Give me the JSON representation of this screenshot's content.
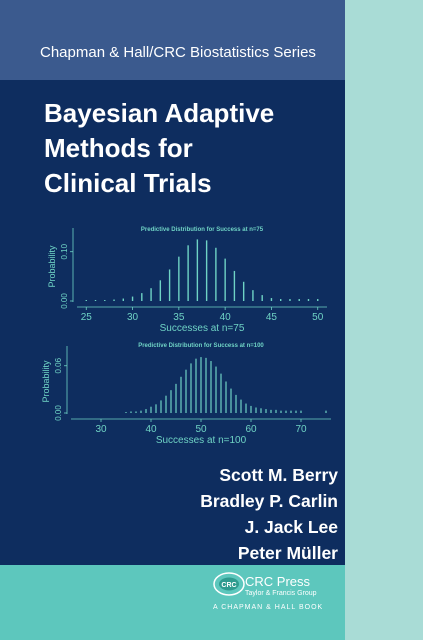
{
  "series": "Chapman & Hall/CRC Biostatistics Series",
  "title_lines": [
    "Bayesian Adaptive",
    "Methods for",
    "Clinical Trials"
  ],
  "authors": [
    "Scott M. Berry",
    "Bradley P. Carlin",
    "J. Jack Lee",
    "Peter Müller"
  ],
  "publisher": {
    "name": "CRC Press",
    "group": "Taylor & Francis Group",
    "imprint": "A CHAPMAN & HALL BOOK",
    "logo_text": "CRC"
  },
  "colors": {
    "navy": "#0e2d5f",
    "series_band": "#3b5a8e",
    "teal": "#5dc7bd",
    "spine": "#a9dcd6",
    "chart_color": "#6fd3c5"
  },
  "chart_data": [
    {
      "type": "bar",
      "title": "Predictive Distribution for Success at n=75",
      "xlabel": "Successes at n=75",
      "ylabel": "Probability",
      "xlim": [
        24,
        51
      ],
      "ylim": [
        0,
        0.14
      ],
      "x_ticks": [
        25,
        30,
        35,
        40,
        45,
        50
      ],
      "y_ticks": [
        0.0,
        0.1
      ],
      "y_tick_labels": [
        "0.00",
        "0.10"
      ],
      "x": [
        25,
        26,
        27,
        28,
        29,
        30,
        31,
        32,
        33,
        34,
        35,
        36,
        37,
        38,
        39,
        40,
        41,
        42,
        43,
        44,
        45,
        46,
        47,
        48,
        49,
        50
      ],
      "values": [
        0.001,
        0.001,
        0.002,
        0.003,
        0.005,
        0.009,
        0.016,
        0.026,
        0.042,
        0.064,
        0.09,
        0.113,
        0.125,
        0.123,
        0.108,
        0.086,
        0.061,
        0.039,
        0.022,
        0.012,
        0.006,
        0.004,
        0.004,
        0.004,
        0.004,
        0.004
      ]
    },
    {
      "type": "bar",
      "title": "Predictive Distribution for Success at n=100",
      "xlabel": "Successes at n=100",
      "ylabel": "Probability",
      "xlim": [
        24,
        76
      ],
      "ylim": [
        0,
        0.08
      ],
      "x_ticks": [
        30,
        40,
        50,
        60,
        70
      ],
      "y_ticks": [
        0.0,
        0.06
      ],
      "y_tick_labels": [
        "0.00",
        "0.06"
      ],
      "x": [
        35,
        36,
        37,
        38,
        39,
        40,
        41,
        42,
        43,
        44,
        45,
        46,
        47,
        48,
        49,
        50,
        51,
        52,
        53,
        54,
        55,
        56,
        57,
        58,
        59,
        60,
        61,
        62,
        63,
        64,
        65,
        66,
        67,
        68,
        69,
        70,
        75
      ],
      "values": [
        0.001,
        0.002,
        0.002,
        0.003,
        0.005,
        0.008,
        0.011,
        0.016,
        0.022,
        0.029,
        0.037,
        0.046,
        0.055,
        0.063,
        0.069,
        0.071,
        0.07,
        0.066,
        0.059,
        0.05,
        0.04,
        0.031,
        0.023,
        0.017,
        0.012,
        0.009,
        0.007,
        0.006,
        0.005,
        0.004,
        0.004,
        0.003,
        0.003,
        0.003,
        0.003,
        0.003,
        0.003
      ]
    }
  ]
}
